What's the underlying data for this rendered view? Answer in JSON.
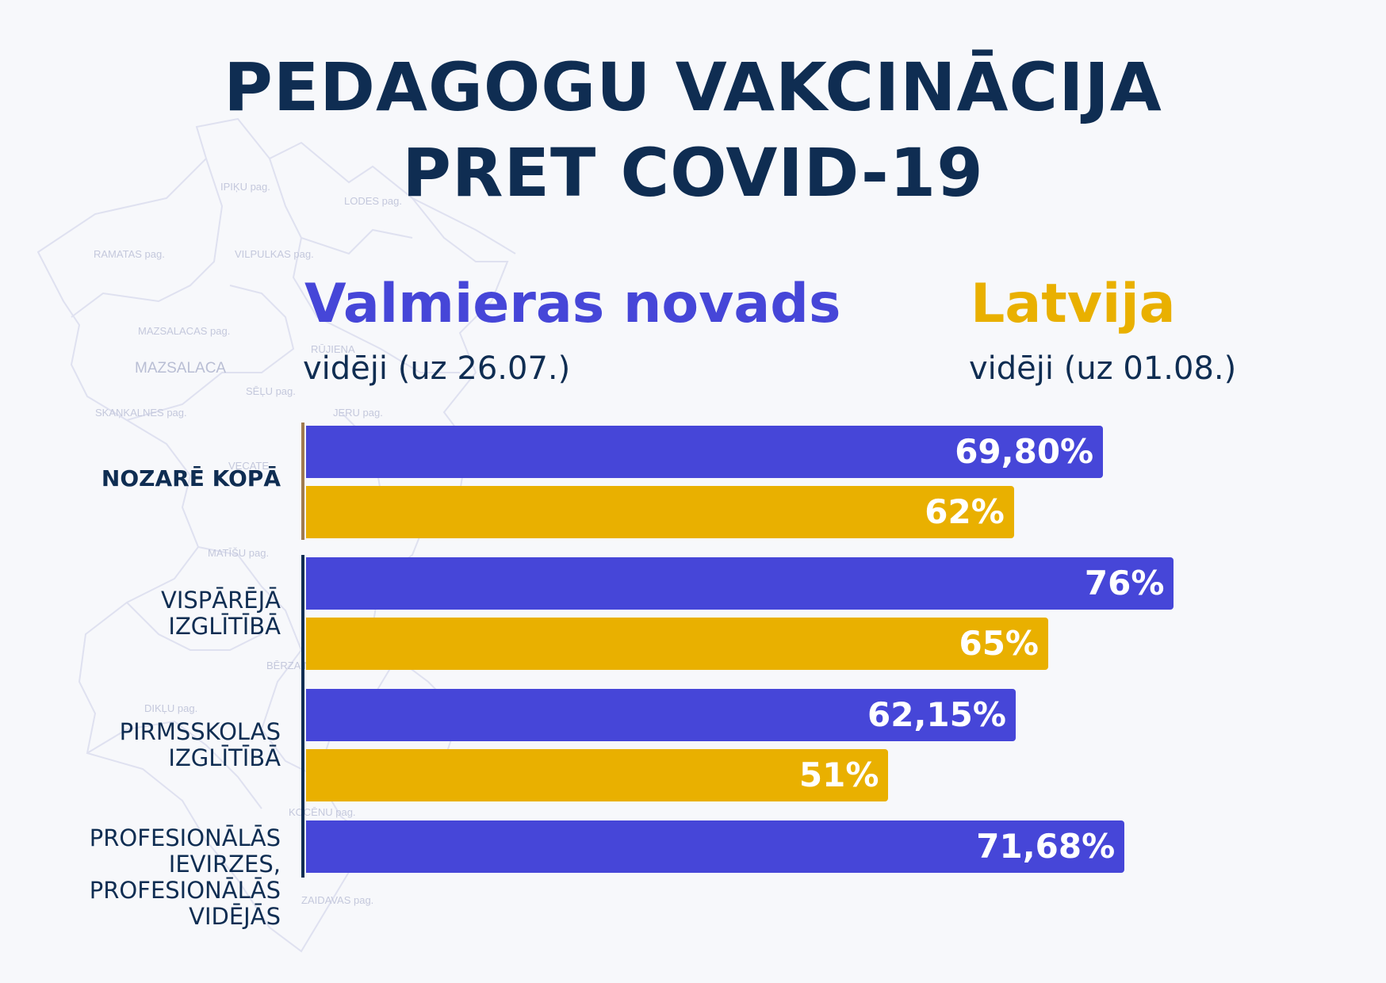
{
  "title": {
    "line1": "PEDAGOGU VAKCINĀCIJA",
    "line2": "PRET COVID-19"
  },
  "legend": {
    "valmiera": {
      "name": "Valmieras novads",
      "note": "vidēji (uz 26.07.)"
    },
    "latvija": {
      "name": "Latvija",
      "note": "vidēji (uz 01.08.)"
    }
  },
  "background_map": {
    "labels": [
      "IPIĶU pag.",
      "LODES pag.",
      "RAMATAS pag.",
      "VILPULKAS pag.",
      "MAZSALACAS pag.",
      "MAZSALACA",
      "RŪJIENA",
      "SĒĻU pag.",
      "SKAŅKALNES pag.",
      "JERU pag.",
      "VECATE",
      "MATĪŠU pag.",
      "BĒRZAINES",
      "DIKĻU pag.",
      "KOCĒNU pag.",
      "ZAIDAVAS pag."
    ]
  },
  "colors": {
    "valmiera": "#4646d8",
    "latvija": "#e9b000",
    "title": "#0f2d52",
    "axis_total": "#a07b4f",
    "axis_groups": "#0f2d52"
  },
  "chart_data": {
    "type": "bar",
    "orientation": "horizontal",
    "categories": [
      "NOZARĒ KOPĀ",
      "VISPĀRĒJĀ\nIZGLĪTĪBĀ",
      "PIRMSSKOLAS\nIZGLĪTĪBĀ",
      "PROFESIONĀLĀS\nIEVIRZES,\nPROFESIONĀLĀS\nVIDĒJĀS"
    ],
    "series": [
      {
        "name": "Valmieras novads",
        "values": [
          69.8,
          76,
          62.15,
          71.68
        ],
        "labels": [
          "69,80%",
          "76%",
          "62,15%",
          "71,68%"
        ]
      },
      {
        "name": "Latvija",
        "values": [
          62,
          65,
          51,
          null
        ],
        "labels": [
          "62%",
          "65%",
          "51%",
          null
        ]
      }
    ],
    "xlim": [
      0,
      100
    ],
    "unit": "%",
    "grid": false
  }
}
